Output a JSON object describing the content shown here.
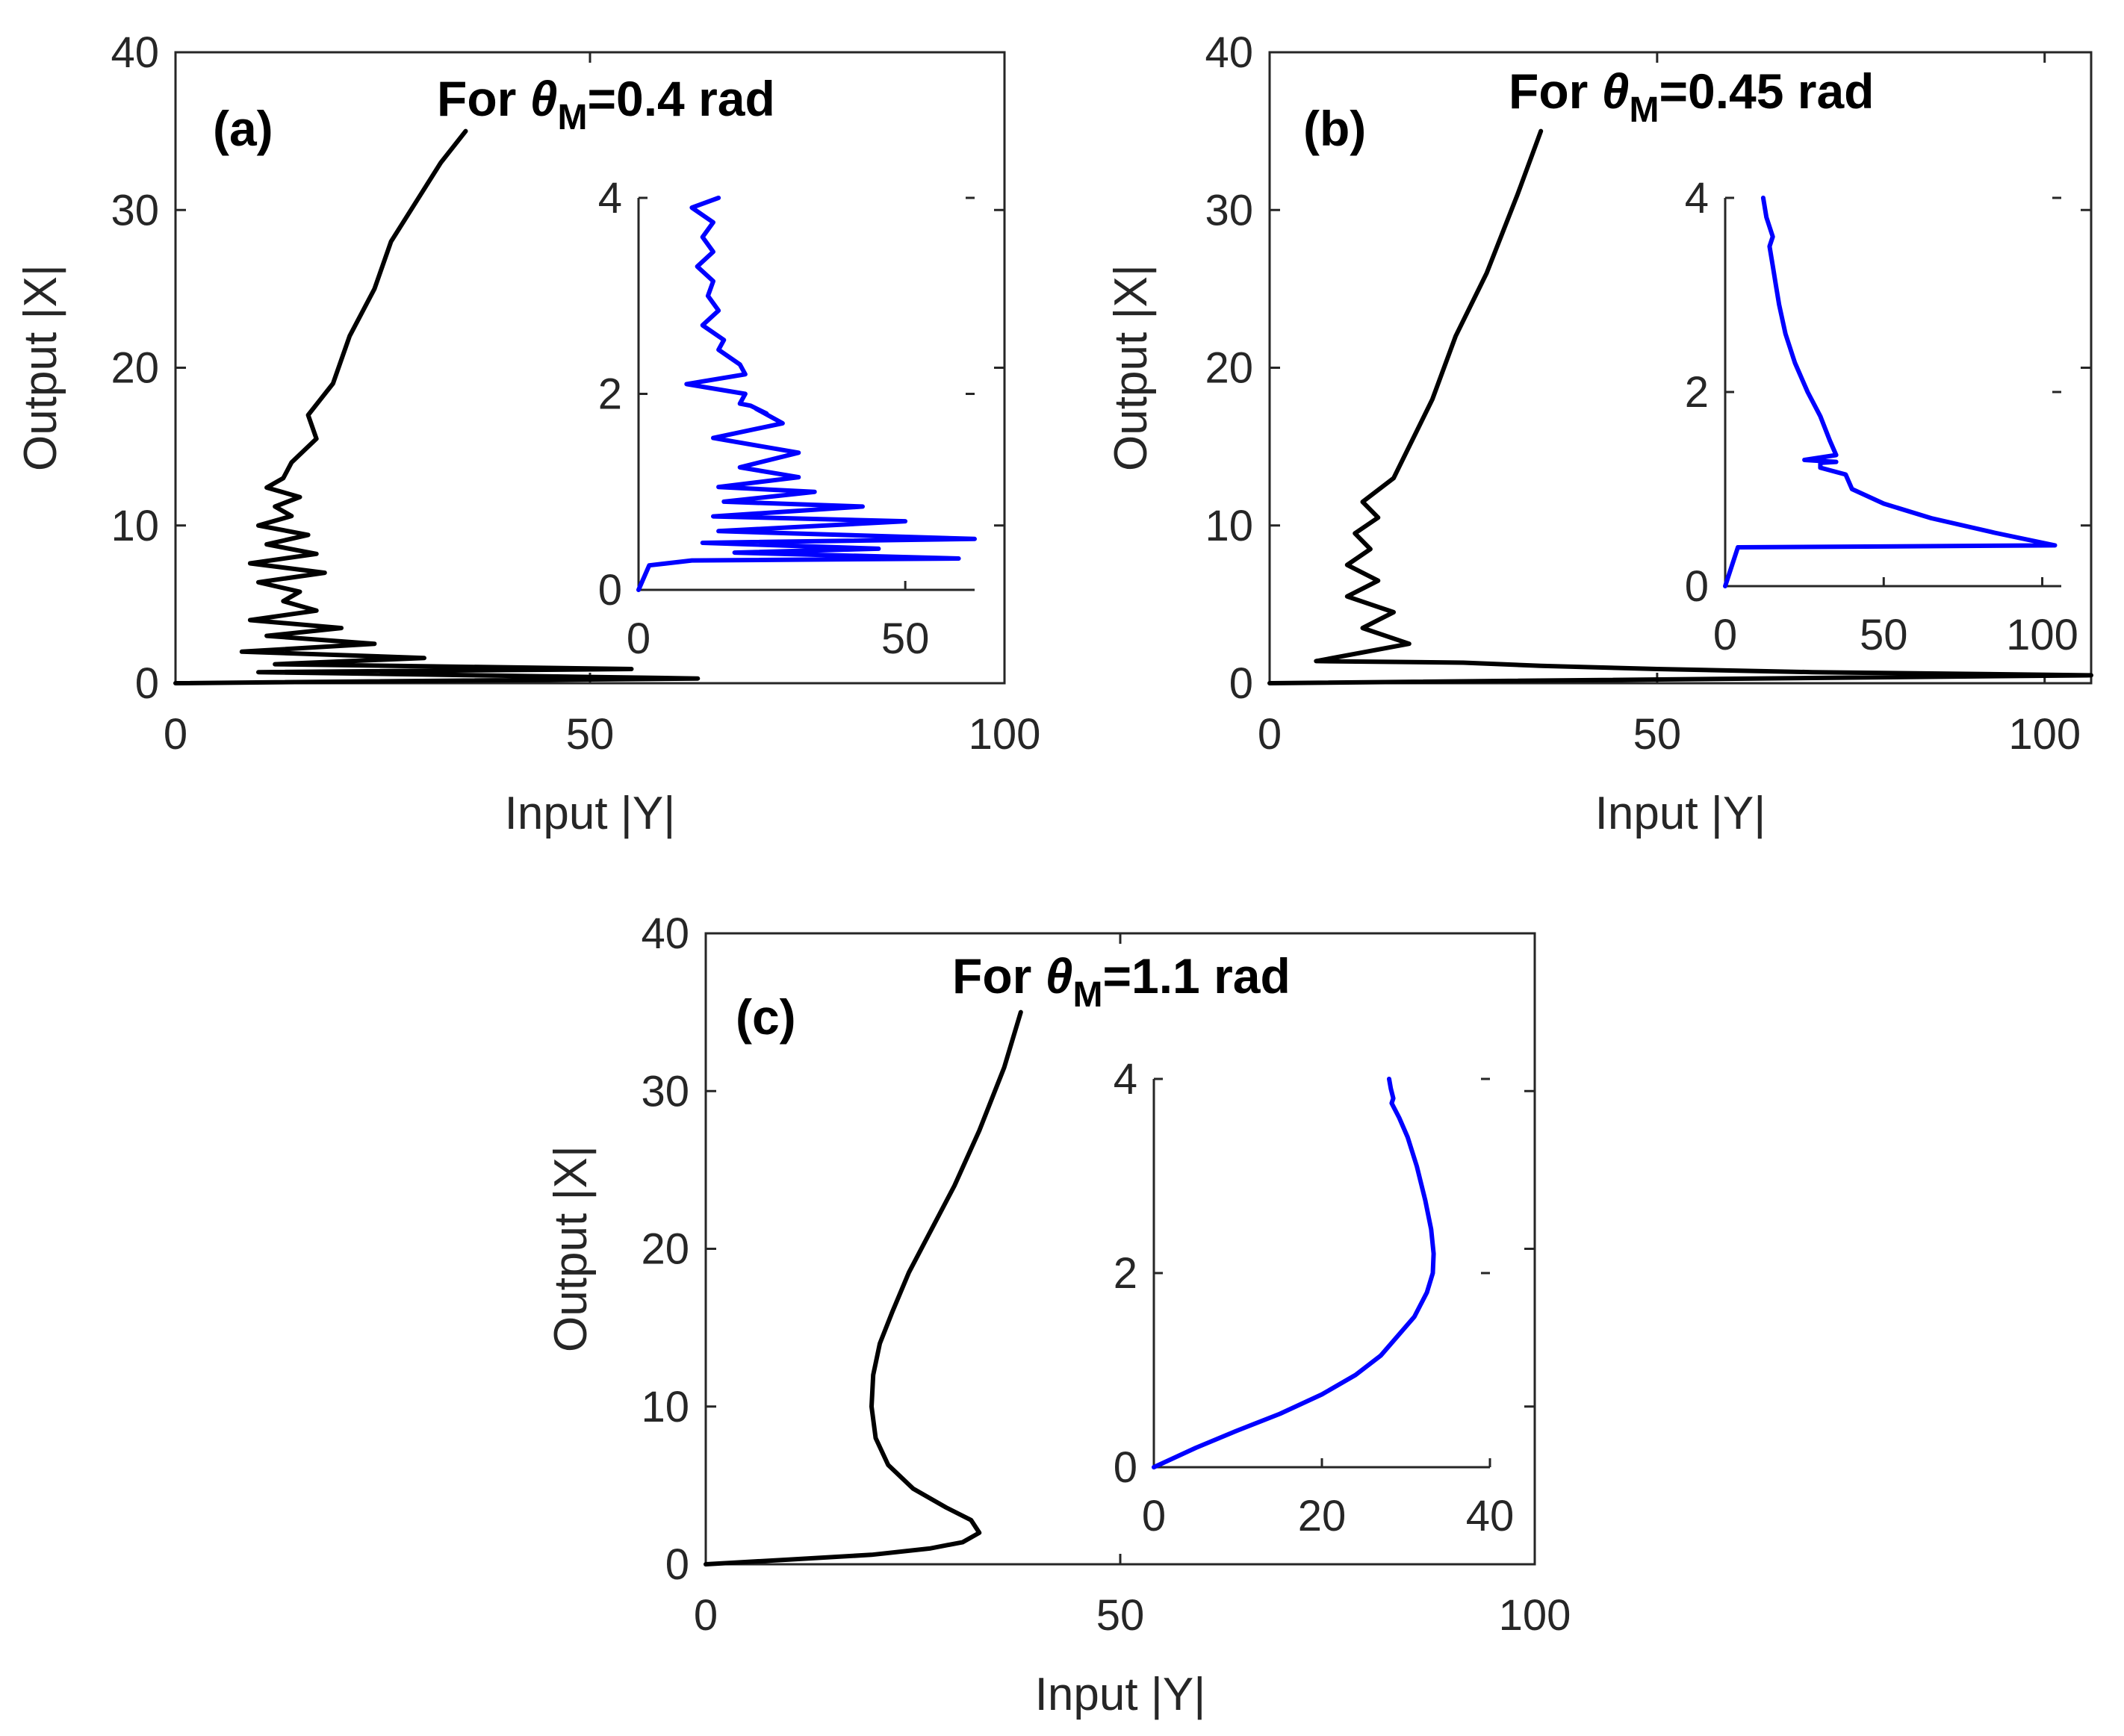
{
  "figure": {
    "colors": {
      "main_line": "#000000",
      "inset_line": "#0000ff",
      "axis": "#262626"
    }
  },
  "chart_data": [
    {
      "type": "line",
      "id": "a",
      "panel_label": "(a)",
      "title": {
        "prefix": "For ",
        "symbol": "θ",
        "subscript": "M",
        "suffix": "=0.4 rad"
      },
      "xlabel": "Input |Y|",
      "ylabel": "Output |X|",
      "xlim": [
        0,
        100
      ],
      "ylim": [
        0,
        40
      ],
      "xticks": [
        0,
        50,
        100
      ],
      "xtick_labels": [
        "0",
        "50",
        "100"
      ],
      "yticks": [
        0,
        10,
        20,
        30,
        40
      ],
      "ytick_labels": [
        "0",
        "10",
        "20",
        "30",
        "40"
      ],
      "series": [
        {
          "name": "main",
          "color": "#000000",
          "x": [
            0,
            63,
            10,
            55,
            12,
            30,
            8,
            24,
            11,
            20,
            9,
            17,
            13,
            15,
            10,
            18,
            9,
            17,
            11,
            16,
            10,
            14,
            12,
            15,
            11,
            13,
            14,
            17,
            16,
            19,
            21,
            24,
            26,
            29,
            32,
            35
          ],
          "y": [
            0,
            0.3,
            0.7,
            0.9,
            1.2,
            1.6,
            2.0,
            2.5,
            3.0,
            3.5,
            4.0,
            4.6,
            5.2,
            5.8,
            6.4,
            7.0,
            7.6,
            8.2,
            8.8,
            9.4,
            10.0,
            10.6,
            11.2,
            11.8,
            12.4,
            13.0,
            14.0,
            15.5,
            17.0,
            19.0,
            22.0,
            25.0,
            28.0,
            30.5,
            33.0,
            35.0
          ]
        }
      ],
      "inset": {
        "xlim": [
          0,
          63
        ],
        "ylim": [
          0,
          4
        ],
        "xticks": [
          0,
          50
        ],
        "xtick_labels": [
          "0",
          "50"
        ],
        "yticks": [
          0,
          2,
          4
        ],
        "ytick_labels": [
          "0",
          "2",
          "4"
        ],
        "series": [
          {
            "name": "inset",
            "color": "#0000ff",
            "x": [
              0,
              2,
              10,
              60,
              18,
              45,
              12,
              63,
              15,
              50,
              14,
              42,
              16,
              33,
              15,
              30,
              19,
              30,
              14,
              27,
              22,
              24,
              21,
              19,
              20,
              9,
              20,
              19,
              15,
              16,
              12,
              15,
              13,
              14,
              11,
              14,
              12,
              14,
              10,
              15
            ],
            "y": [
              0,
              0.25,
              0.3,
              0.32,
              0.38,
              0.42,
              0.48,
              0.52,
              0.6,
              0.7,
              0.75,
              0.85,
              0.9,
              1.0,
              1.05,
              1.15,
              1.25,
              1.4,
              1.55,
              1.7,
              1.85,
              1.8,
              1.88,
              1.9,
              2.0,
              2.1,
              2.2,
              2.3,
              2.45,
              2.55,
              2.7,
              2.85,
              3.0,
              3.15,
              3.3,
              3.45,
              3.6,
              3.75,
              3.9,
              4.0
            ]
          }
        ]
      }
    },
    {
      "type": "line",
      "id": "b",
      "panel_label": "(b)",
      "title": {
        "prefix": "For ",
        "symbol": "θ",
        "subscript": "M",
        "suffix": "=0.45 rad"
      },
      "xlabel": "Input |Y|",
      "ylabel": "Output |X|",
      "xlim": [
        0,
        106
      ],
      "ylim": [
        0,
        40
      ],
      "xticks": [
        0,
        50,
        100
      ],
      "xtick_labels": [
        "0",
        "50",
        "100"
      ],
      "yticks": [
        0,
        10,
        20,
        30,
        40
      ],
      "ytick_labels": [
        "0",
        "10",
        "20",
        "30",
        "40"
      ],
      "series": [
        {
          "name": "main",
          "color": "#000000",
          "x": [
            0,
            106,
            70,
            50,
            35,
            25,
            6,
            18,
            12,
            16,
            10,
            14,
            10,
            13,
            11,
            14,
            12,
            16,
            18,
            21,
            24,
            28,
            32,
            35
          ],
          "y": [
            0,
            0.5,
            0.7,
            0.9,
            1.1,
            1.3,
            1.4,
            2.5,
            3.5,
            4.5,
            5.5,
            6.5,
            7.5,
            8.5,
            9.5,
            10.5,
            11.5,
            13.0,
            15.0,
            18.0,
            22.0,
            26.0,
            31.0,
            35.0
          ]
        }
      ],
      "inset": {
        "xlim": [
          0,
          106
        ],
        "ylim": [
          0,
          4
        ],
        "xticks": [
          0,
          50,
          100
        ],
        "xtick_labels": [
          "0",
          "50",
          "100"
        ],
        "yticks": [
          0,
          2,
          4
        ],
        "ytick_labels": [
          "0",
          "2",
          "4"
        ],
        "series": [
          {
            "name": "inset",
            "color": "#0000ff",
            "x": [
              0,
              4,
              104,
              85,
              65,
              50,
              40,
              38,
              30,
              30,
              35,
              25,
              35,
              33,
              30,
              26,
              22,
              19,
              17,
              16,
              15,
              14,
              15,
              13,
              12
            ],
            "y": [
              0,
              0.4,
              0.42,
              0.55,
              0.7,
              0.85,
              1.0,
              1.15,
              1.22,
              1.27,
              1.28,
              1.3,
              1.35,
              1.5,
              1.75,
              2.0,
              2.3,
              2.6,
              2.9,
              3.1,
              3.3,
              3.5,
              3.6,
              3.8,
              4.0
            ]
          }
        ]
      }
    },
    {
      "type": "line",
      "id": "c",
      "panel_label": "(c)",
      "title": {
        "prefix": "For ",
        "symbol": "θ",
        "subscript": "M",
        "suffix": "=1.1 rad"
      },
      "xlabel": "Input |Y|",
      "ylabel": "Output |X|",
      "xlim": [
        0,
        100
      ],
      "ylim": [
        0,
        40
      ],
      "xticks": [
        0,
        50,
        100
      ],
      "xtick_labels": [
        "0",
        "50",
        "100"
      ],
      "yticks": [
        0,
        10,
        20,
        30,
        40
      ],
      "ytick_labels": [
        "0",
        "10",
        "20",
        "30",
        "40"
      ],
      "series": [
        {
          "name": "main",
          "color": "#000000",
          "x": [
            0,
            10,
            20,
            27,
            31,
            33,
            32,
            29,
            25,
            22,
            20.5,
            20,
            20.2,
            21,
            22.5,
            24.5,
            27,
            30,
            33,
            36,
            38
          ],
          "y": [
            0,
            0.3,
            0.6,
            1.0,
            1.4,
            2.0,
            2.8,
            3.6,
            4.8,
            6.3,
            8.0,
            10.0,
            12.0,
            14.0,
            16.0,
            18.5,
            21.0,
            24.0,
            27.5,
            31.5,
            35.0
          ]
        }
      ],
      "inset": {
        "xlim": [
          0,
          40
        ],
        "ylim": [
          0,
          4
        ],
        "xticks": [
          0,
          20,
          40
        ],
        "xtick_labels": [
          "0",
          "20",
          "40"
        ],
        "yticks": [
          0,
          2,
          4
        ],
        "ytick_labels": [
          "0",
          "2",
          "4"
        ],
        "series": [
          {
            "name": "inset",
            "color": "#0000ff",
            "x": [
              0,
              5,
              10,
              15,
              20,
              24,
              27,
              29,
              31,
              32.5,
              33.2,
              33.3,
              33,
              32.3,
              31.3,
              30.2,
              29.2,
              28.3,
              28.5,
              28.2,
              28
            ],
            "y": [
              0,
              0.2,
              0.38,
              0.55,
              0.75,
              0.95,
              1.15,
              1.35,
              1.55,
              1.8,
              2.0,
              2.2,
              2.45,
              2.75,
              3.1,
              3.4,
              3.6,
              3.75,
              3.8,
              3.9,
              4.0
            ]
          }
        ]
      }
    }
  ]
}
